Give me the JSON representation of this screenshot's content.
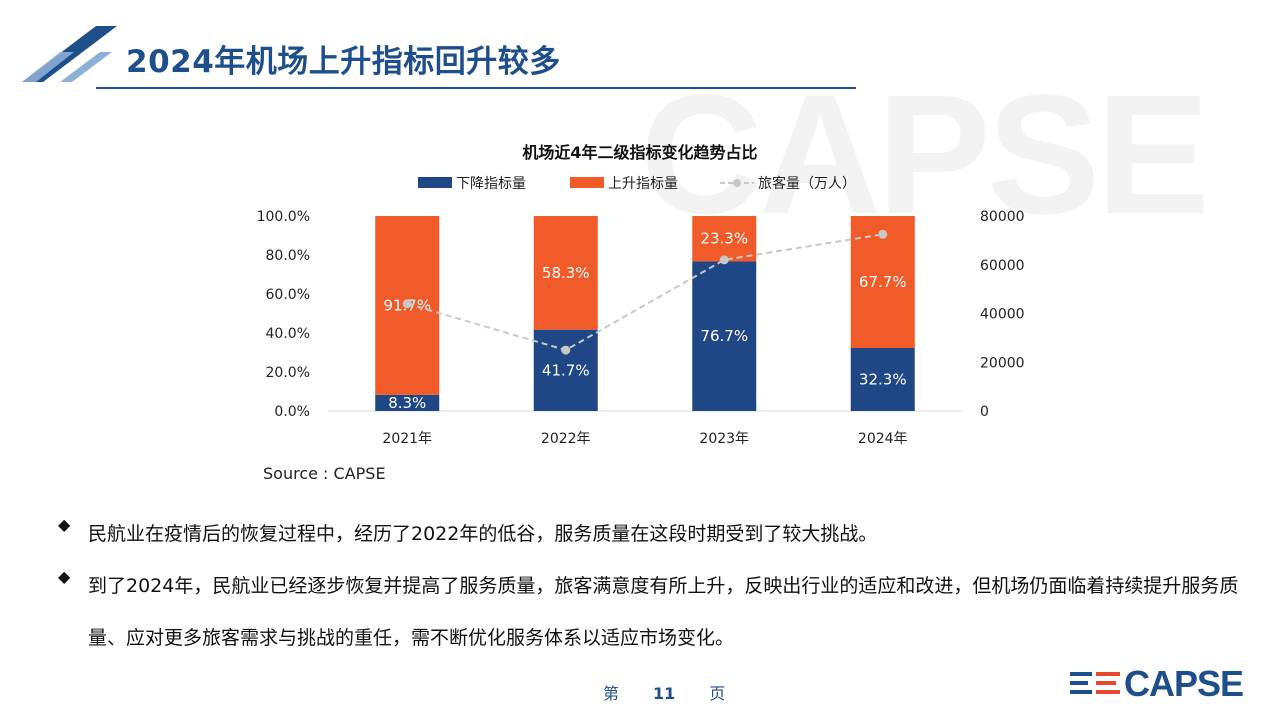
{
  "slide": {
    "title": "2024年机场上升指标回升较多",
    "watermark": "CAPSE",
    "source": "Source : CAPSE",
    "bullets": [
      "民航业在疫情后的恢复过程中，经历了2022年的低谷，服务质量在这段时期受到了较大挑战。",
      "到了2024年，民航业已经逐步恢复并提高了服务质量，旅客满意度有所上升，反映出行业的适应和改进，但机场仍面临着持续提升服务质量、应对更多旅客需求与挑战的重任，需不断优化服务体系以适应市场变化。"
    ],
    "page": {
      "prefix": "第",
      "number": "11",
      "suffix": "页"
    },
    "logo": "CAPSE"
  },
  "colors": {
    "brand_blue": "#1f4e8c",
    "down_bar": "#1f4785",
    "up_bar": "#f15a29",
    "passenger_line": "#c8c8c8"
  },
  "chart_data": {
    "type": "bar",
    "stacked": true,
    "title": "机场近4年二级指标变化趋势占比",
    "categories": [
      "2021年",
      "2022年",
      "2023年",
      "2024年"
    ],
    "series": [
      {
        "name": "下降指标量",
        "axis": "left",
        "values": [
          8.3,
          41.7,
          76.7,
          32.3
        ],
        "labels": [
          "8.3%",
          "41.7%",
          "76.7%",
          "32.3%"
        ]
      },
      {
        "name": "上升指标量",
        "axis": "left",
        "values": [
          91.7,
          58.3,
          23.3,
          67.7
        ],
        "labels": [
          "91.7%",
          "58.3%",
          "23.3%",
          "67.7%"
        ]
      },
      {
        "name": "旅客量（万人）",
        "axis": "right",
        "type": "line",
        "style": "dashed",
        "values": [
          44000,
          25000,
          62000,
          72500
        ]
      }
    ],
    "y_left": {
      "min": 0,
      "max": 100,
      "ticks": [
        "0.0%",
        "20.0%",
        "40.0%",
        "60.0%",
        "80.0%",
        "100.0%"
      ]
    },
    "y_right": {
      "min": 0,
      "max": 80000,
      "ticks": [
        "0",
        "20000",
        "40000",
        "60000",
        "80000"
      ]
    },
    "legend": "top",
    "grid": false
  }
}
